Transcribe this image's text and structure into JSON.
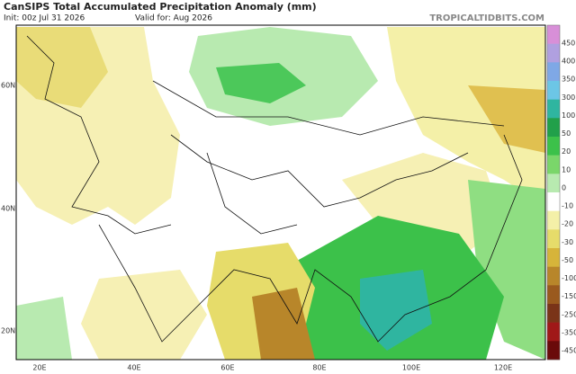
{
  "header": {
    "title": "CanSIPS Total Accumulated Precipitation Anomaly (mm)",
    "init": "Init: 00z Jul 31 2026",
    "valid": "Valid for: Aug 2026",
    "site": "TROPICALTIDBITS.COM"
  },
  "map": {
    "lat_labels": [
      "60N",
      "40N",
      "20N"
    ],
    "lon_labels": [
      "20E",
      "40E",
      "60E",
      "80E",
      "100E",
      "120E"
    ]
  },
  "colorbar": {
    "labels": [
      450,
      400,
      350,
      300,
      100,
      50,
      20,
      10,
      0,
      -10,
      -20,
      -30,
      -50,
      -100,
      -150,
      -250,
      -350,
      -450
    ],
    "colors": [
      "#d88fd8",
      "#b0a0e0",
      "#7fa8e6",
      "#6cc6e6",
      "#2fb5a0",
      "#21a04a",
      "#3cc14a",
      "#7ad66a",
      "#b8eab0",
      "#ffffff",
      "#f4f0a8",
      "#e6dc6a",
      "#d6b43a",
      "#b8862a",
      "#9a5a1e",
      "#7a3418",
      "#a01818",
      "#6a0a0a"
    ]
  }
}
